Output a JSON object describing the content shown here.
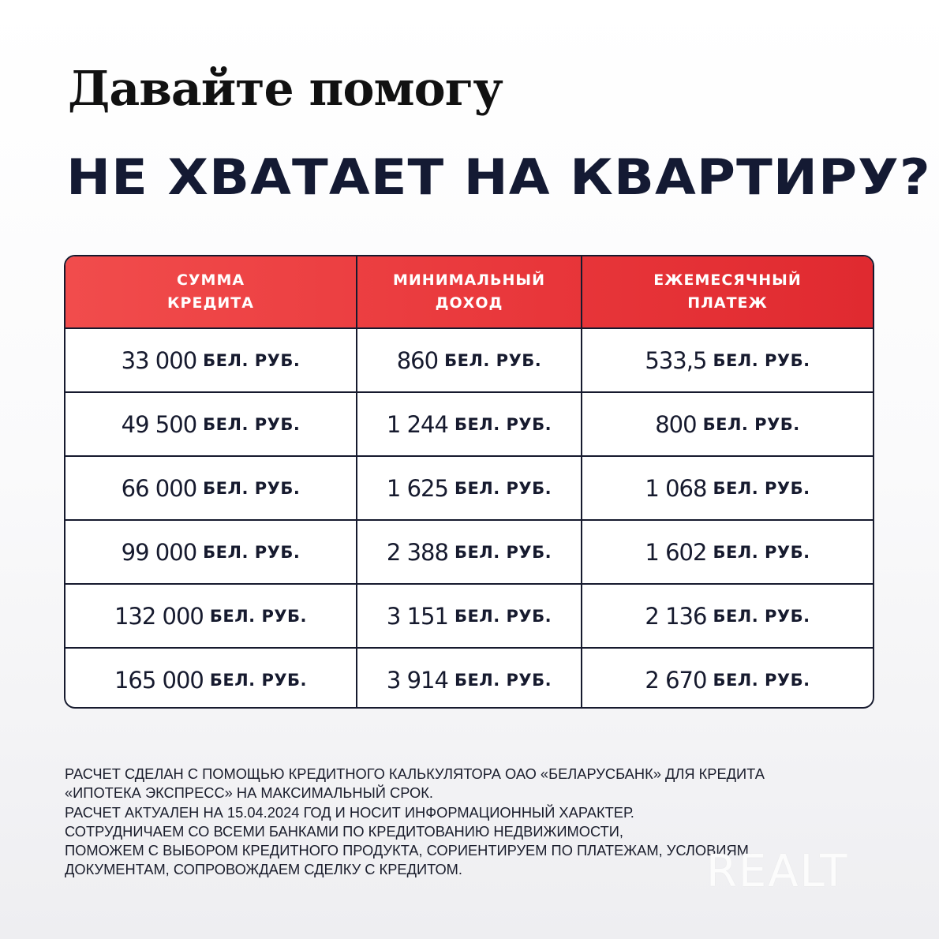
{
  "title_line1": "Давайте помогу",
  "title_line2": "НЕ ХВАТАЕТ НА КВАРТИРУ?",
  "colors": {
    "header_red": "#e8363a",
    "dark": "#161a2e"
  },
  "table": {
    "headers": [
      "СУММА\nКРЕДИТА",
      "МИНИМАЛЬНЫЙ\nДОХОД",
      "ЕЖЕМЕСЯЧНЫЙ\nПЛАТЕЖ"
    ],
    "unit": "БЕЛ. РУБ.",
    "rows": [
      [
        "33 000",
        "860",
        "533,5"
      ],
      [
        "49 500",
        "1 244",
        "800"
      ],
      [
        "66 000",
        "1 625",
        "1 068"
      ],
      [
        "99 000",
        "2 388",
        "1 602"
      ],
      [
        "132 000",
        "3 151",
        "2 136"
      ],
      [
        "165 000",
        "3 914",
        "2 670"
      ]
    ]
  },
  "footnote": "Расчет сделан с помощью кредитного калькулятора ОАО «Беларусбанк» для кредита\n«Ипотека Экспресс» на максимальный срок.\nРасчет актуален на 15.04.2024 год и носит информационный характер.\nСотрудничаем со всеми банками по кредитованию недвижимости,\nпоможем с выбором кредитного продукта, сориентируем по платежам, условиям,\nдокументам, сопровождаем сделку с кредитом.",
  "watermark": "REALT"
}
